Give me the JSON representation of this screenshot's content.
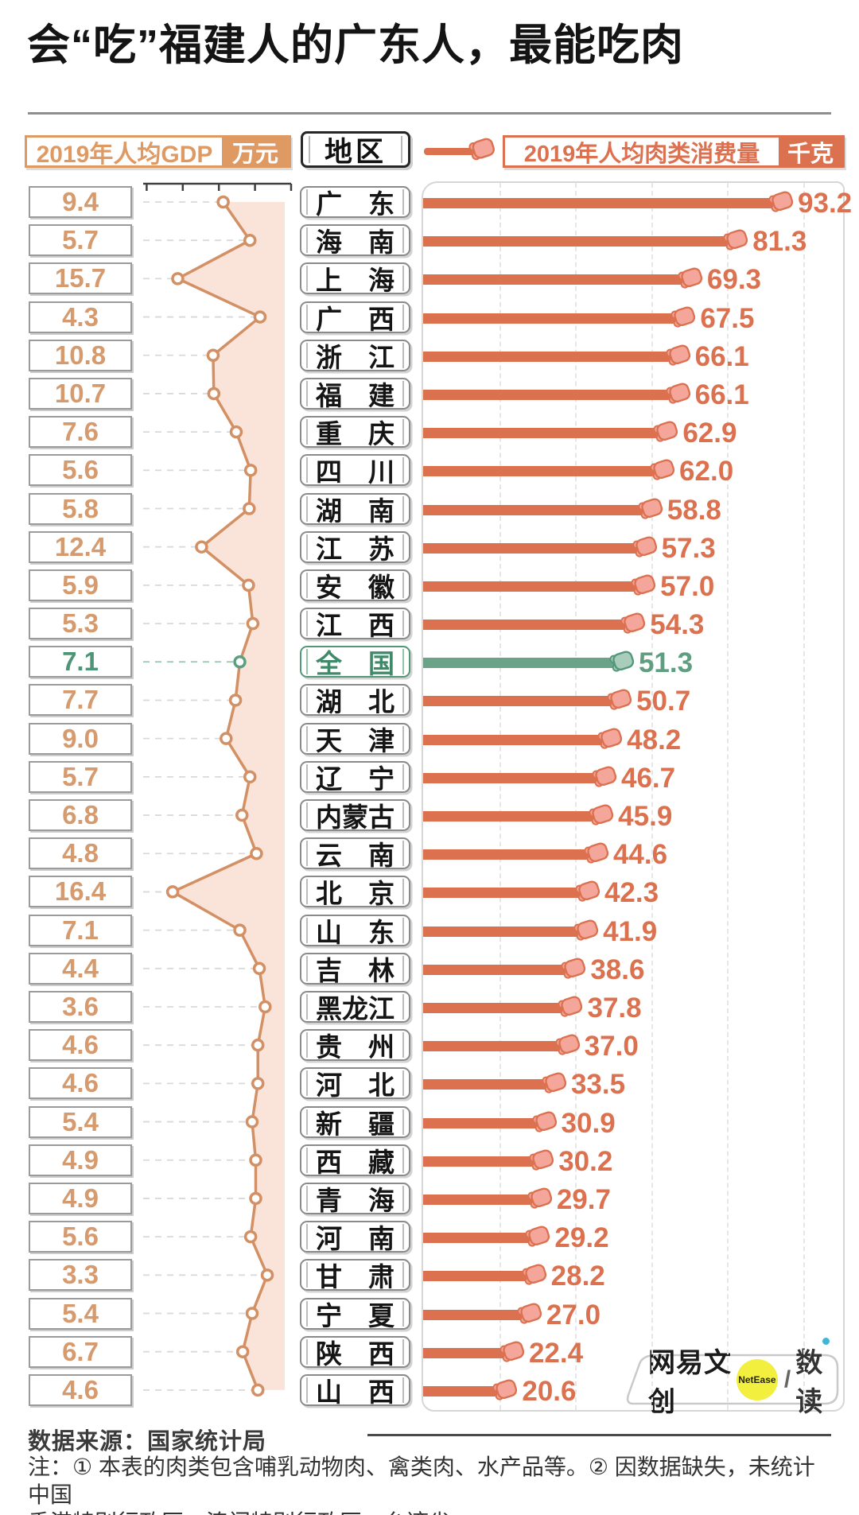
{
  "title": "会“吃”福建人的广东人，最能吃肉",
  "legend": {
    "gdp_label": "2019年人均GDP",
    "gdp_unit": "万元",
    "region_label": "地区",
    "meat_label": "2019年人均肉类消费量",
    "meat_unit": "千克"
  },
  "colors": {
    "salmon": "#DC7150",
    "tan_orange": "#DF9A64",
    "line_orange": "#D29064",
    "pink_fill": "#FAE4D9",
    "green": "#5F9E81",
    "pig_fill": "#F5A69A",
    "pig_fill_green": "#AACDBB"
  },
  "chart_data": {
    "type": "bar",
    "title": "会“吃”福建人的广东人，最能吃肉",
    "categories": [
      "广东",
      "海南",
      "上海",
      "广西",
      "浙江",
      "福建",
      "重庆",
      "四川",
      "湖南",
      "江苏",
      "安徽",
      "江西",
      "全国",
      "湖北",
      "天津",
      "辽宁",
      "内蒙古",
      "云南",
      "北京",
      "山东",
      "吉林",
      "黑龙江",
      "贵州",
      "河北",
      "新疆",
      "西藏",
      "青海",
      "河南",
      "甘肃",
      "宁夏",
      "陕西",
      "山西"
    ],
    "highlight_index": 12,
    "highlight_label": "全国",
    "series": [
      {
        "name": "2019年人均GDP",
        "unit": "万元",
        "type": "line",
        "axis": {
          "ticks": [
            0,
            5,
            10,
            15,
            20
          ],
          "inverted": true,
          "position": "top"
        },
        "values": [
          "9.4",
          "5.7",
          "15.7",
          "4.3",
          "10.8",
          "10.7",
          "7.6",
          "5.6",
          "5.8",
          "12.4",
          "5.9",
          "5.3",
          "7.1",
          "7.7",
          "9.0",
          "5.7",
          "6.8",
          "4.8",
          "16.4",
          "7.1",
          "4.4",
          "3.6",
          "4.6",
          "4.6",
          "5.4",
          "4.9",
          "4.9",
          "5.6",
          "3.3",
          "5.4",
          "6.7",
          "4.6"
        ]
      },
      {
        "name": "2019年人均肉类消费量",
        "unit": "千克",
        "type": "bar",
        "axis": {
          "gridline_step": 20,
          "range": [
            0,
            110
          ]
        },
        "values": [
          "93.2",
          "81.3",
          "69.3",
          "67.5",
          "66.1",
          "66.1",
          "62.9",
          "62.0",
          "58.8",
          "57.3",
          "57.0",
          "54.3",
          "51.3",
          "50.7",
          "48.2",
          "46.7",
          "45.9",
          "44.6",
          "42.3",
          "41.9",
          "38.6",
          "37.8",
          "37.0",
          "33.5",
          "30.9",
          "30.2",
          "29.7",
          "29.2",
          "28.2",
          "27.0",
          "22.4",
          "20.6"
        ]
      }
    ]
  },
  "footer": {
    "source_label": "数据来源：国家统计局",
    "note_line1": "注：① 本表的肉类包含哺乳动物肉、禽类肉、水产品等。② 因数据缺失，未统计中国",
    "note_line2": "香港特别行政区、澳门特别行政区、台湾省。"
  },
  "logo": {
    "brand": "网易文创",
    "netease": "NetEase",
    "slash": "/",
    "product": "数读"
  }
}
